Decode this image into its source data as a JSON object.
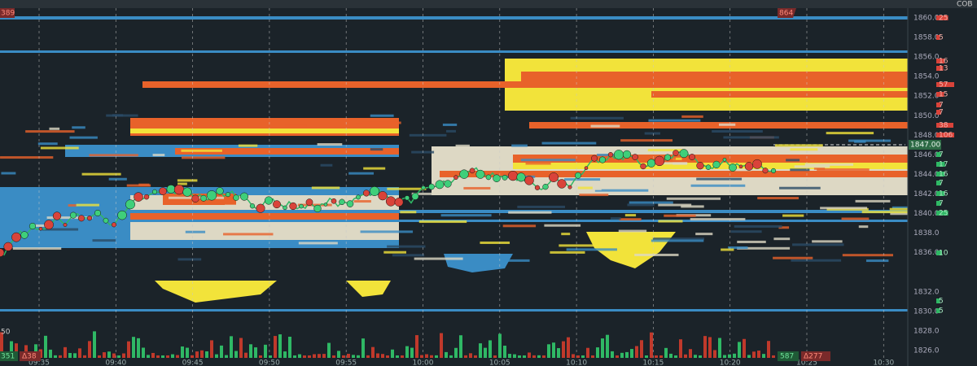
{
  "top_badges": {
    "left": "389",
    "right": "864"
  },
  "cob_label": "COB",
  "price_axis": {
    "labels": [
      "1860.0",
      "1858.0",
      "1856.0",
      "1854.0",
      "1852.0",
      "1850.0",
      "1848.0",
      "1846.0",
      "1844.0",
      "1842.0",
      "1840.0",
      "1838.0",
      "1836.0",
      "1832.0",
      "1830.0",
      "1828.0",
      "1826.0"
    ],
    "current": "1847.00"
  },
  "cob_sizes": {
    "ask": [
      "25",
      "5",
      "16",
      "13",
      "57",
      "15",
      "7",
      "7",
      "38",
      "106"
    ],
    "bid": [
      "7",
      "17",
      "16",
      "7",
      "16",
      "7",
      "25",
      "10",
      "5",
      "5"
    ]
  },
  "time_axis": [
    "09:35",
    "09:40",
    "09:45",
    "09:50",
    "09:55",
    "10:00",
    "10:05",
    "10:10",
    "10:15",
    "10:20",
    "10:25",
    "10:30"
  ],
  "volume_scale": "50",
  "bottom_badges": {
    "left_volume": "351",
    "left_delta": "Δ38",
    "right_volume": "587",
    "right_delta": "Δ277"
  }
}
